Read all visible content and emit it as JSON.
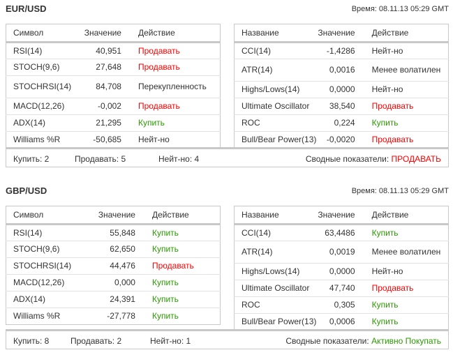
{
  "sections": [
    {
      "pair": "EUR/USD",
      "time": "Время: 08.11.13 05:29 GMT",
      "left": {
        "headers": [
          "Символ",
          "Значение",
          "Действие"
        ],
        "rows": [
          [
            "RSI(14)",
            "40,951",
            "Продавать",
            "sell"
          ],
          [
            "STOCH(9,6)",
            "27,648",
            "Продавать",
            "sell"
          ],
          [
            "STOCHRSI(14)",
            "84,708",
            "Перекупленность",
            "neutral"
          ],
          [
            "MACD(12,26)",
            "-0,002",
            "Продавать",
            "sell"
          ],
          [
            "ADX(14)",
            "21,295",
            "Купить",
            "buy"
          ],
          [
            "Williams %R",
            "-50,685",
            "Нейт-но",
            "neutral"
          ]
        ]
      },
      "right": {
        "headers": [
          "Название",
          "Значение",
          "Действие"
        ],
        "rows": [
          [
            "CCI(14)",
            "-1,4286",
            "Нейт-но",
            "neutral"
          ],
          [
            "ATR(14)",
            "0,0016",
            "Менее волатилен",
            "neutral"
          ],
          [
            "Highs/Lows(14)",
            "0,0000",
            "Нейт-но",
            "neutral"
          ],
          [
            "Ultimate Oscillator",
            "38,540",
            "Продавать",
            "sell"
          ],
          [
            "ROC",
            "0,224",
            "Купить",
            "buy"
          ],
          [
            "Bull/Bear Power(13)",
            "-0,0020",
            "Продавать",
            "sell"
          ]
        ]
      },
      "summary": {
        "buy": "Купить: 2",
        "sell": "Продавать: 5",
        "neutral": "Нейт-но: 4",
        "label": "Сводные показатели:",
        "verdict": "ПРОДАВАТЬ",
        "verdict_type": "sell"
      }
    },
    {
      "pair": "GBP/USD",
      "time": "Время: 08.11.13 05:29 GMT",
      "left": {
        "headers": [
          "Символ",
          "Значение",
          "Действие"
        ],
        "rows": [
          [
            "RSI(14)",
            "55,848",
            "Купить",
            "buy"
          ],
          [
            "STOCH(9,6)",
            "62,650",
            "Купить",
            "buy"
          ],
          [
            "STOCHRSI(14)",
            "44,476",
            "Продавать",
            "sell"
          ],
          [
            "MACD(12,26)",
            "0,000",
            "Купить",
            "buy"
          ],
          [
            "ADX(14)",
            "24,391",
            "Купить",
            "buy"
          ],
          [
            "Williams %R",
            "-27,778",
            "Купить",
            "buy"
          ]
        ]
      },
      "right": {
        "headers": [
          "Название",
          "Значение",
          "Действие"
        ],
        "rows": [
          [
            "CCI(14)",
            "63,4486",
            "Купить",
            "buy"
          ],
          [
            "ATR(14)",
            "0,0019",
            "Менее волатилен",
            "neutral"
          ],
          [
            "Highs/Lows(14)",
            "0,0000",
            "Нейт-но",
            "neutral"
          ],
          [
            "Ultimate Oscillator",
            "47,740",
            "Продавать",
            "sell"
          ],
          [
            "ROC",
            "0,305",
            "Купить",
            "buy"
          ],
          [
            "Bull/Bear Power(13)",
            "0,0006",
            "Купить",
            "buy"
          ]
        ]
      },
      "summary": {
        "buy": "Купить: 8",
        "sell": "Продавать: 2",
        "neutral": "Нейт-но: 1",
        "label": "Сводные показатели:",
        "verdict": "Активно Покупать",
        "verdict_type": "buy"
      }
    }
  ],
  "colors": {
    "sell": "#ff0000",
    "buy": "#2a9a00",
    "text": "#333333"
  }
}
